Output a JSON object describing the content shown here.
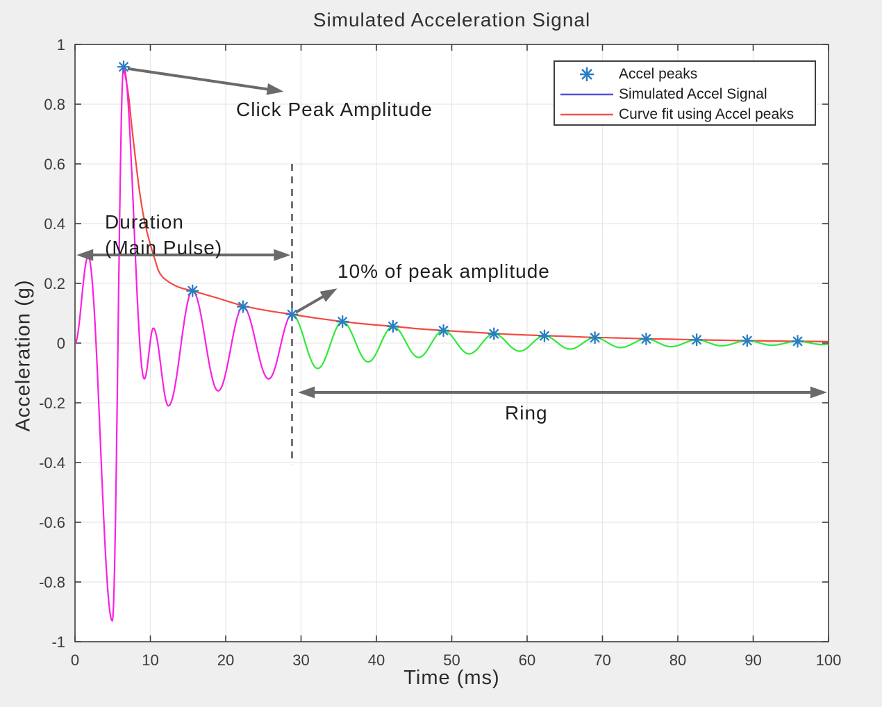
{
  "figure": {
    "title": "Simulated Acceleration Signal",
    "x_axis_label": "Time (ms)",
    "y_axis_label": "Acceleration (g)"
  },
  "legend": {
    "items": [
      {
        "label": "Accel peaks",
        "marker": "asterisk",
        "color": "#2b7dc0"
      },
      {
        "label": "Simulated Accel Signal",
        "marker": "line",
        "color": "#5552dd"
      },
      {
        "label": "Curve fit using Accel peaks",
        "marker": "line",
        "color": "#f5534b"
      }
    ]
  },
  "annotations": {
    "click_peak": "Click Peak Amplitude",
    "duration_line1": "Duration",
    "duration_line2": "(Main Pulse)",
    "ten_percent": "10% of peak amplitude",
    "ring": "Ring"
  },
  "chart_data": {
    "type": "line",
    "title": "Simulated Acceleration Signal",
    "xlabel": "Time (ms)",
    "ylabel": "Acceleration (g)",
    "xlim": [
      0,
      100
    ],
    "ylim": [
      -1,
      1
    ],
    "x_ticks": [
      0,
      10,
      20,
      30,
      40,
      50,
      60,
      70,
      80,
      90,
      100
    ],
    "y_ticks": [
      -1,
      -0.8,
      -0.6,
      -0.4,
      -0.2,
      0,
      0.2,
      0.4,
      0.6,
      0.8,
      1
    ],
    "grid": true,
    "legend_position": "top-right",
    "colors": {
      "main_pulse": "#fb1fe4",
      "ring": "#2fe93a",
      "curve_fit": "#f34a40",
      "peaks": "#2b7dc0",
      "dashed_guide": "#5c5c5c",
      "arrows": "#6a6a6a"
    },
    "series": [
      {
        "name": "Simulated Accel Signal (main pulse segment)",
        "style": "extrema-wave",
        "color_key": "main_pulse",
        "extrema": [
          [
            0,
            0
          ],
          [
            1.75,
            0.29
          ],
          [
            4.95,
            -0.93
          ],
          [
            6.45,
            0.925
          ],
          [
            9.2,
            -0.12
          ],
          [
            10.4,
            0.05
          ],
          [
            12.4,
            -0.21
          ],
          [
            15.6,
            0.175
          ],
          [
            19,
            -0.16
          ],
          [
            22.3,
            0.122
          ],
          [
            25.7,
            -0.12
          ],
          [
            28.8,
            0.096
          ]
        ]
      },
      {
        "name": "Simulated Accel Signal (ring segment)",
        "style": "extrema-wave",
        "color_key": "ring",
        "extrema": [
          [
            28.8,
            0.096
          ],
          [
            32.2,
            -0.085
          ],
          [
            35.5,
            0.072
          ],
          [
            38.9,
            -0.063
          ],
          [
            42.2,
            0.056
          ],
          [
            45.6,
            -0.048
          ],
          [
            48.9,
            0.042
          ],
          [
            52.3,
            -0.036
          ],
          [
            55.6,
            0.031
          ],
          [
            59,
            -0.027
          ],
          [
            62.3,
            0.024
          ],
          [
            65.7,
            -0.02
          ],
          [
            69,
            0.018
          ],
          [
            72.4,
            -0.015
          ],
          [
            75.8,
            0.014
          ],
          [
            79.1,
            -0.012
          ],
          [
            82.5,
            0.011
          ],
          [
            85.8,
            -0.009
          ],
          [
            89.2,
            0.008
          ],
          [
            92.5,
            -0.007
          ],
          [
            95.9,
            0.006
          ],
          [
            99.2,
            -0.005
          ],
          [
            100,
            -0.004
          ]
        ]
      },
      {
        "name": "Curve fit using Accel peaks",
        "style": "smooth-line",
        "color_key": "curve_fit",
        "points": [
          [
            6.45,
            0.925
          ],
          [
            7.1,
            0.83
          ],
          [
            7.6,
            0.71
          ],
          [
            8.5,
            0.52
          ],
          [
            9.3,
            0.4
          ],
          [
            10.6,
            0.28
          ],
          [
            11.5,
            0.225
          ],
          [
            13.5,
            0.19
          ],
          [
            15.6,
            0.175
          ],
          [
            19,
            0.15
          ],
          [
            22.3,
            0.125
          ],
          [
            25.7,
            0.108
          ],
          [
            28.8,
            0.096
          ],
          [
            32.2,
            0.083
          ],
          [
            35.5,
            0.072
          ],
          [
            38.9,
            0.063
          ],
          [
            42.2,
            0.056
          ],
          [
            45.6,
            0.048
          ],
          [
            48.9,
            0.042
          ],
          [
            52.3,
            0.037
          ],
          [
            55.6,
            0.032
          ],
          [
            59,
            0.028
          ],
          [
            62.3,
            0.025
          ],
          [
            65.7,
            0.022
          ],
          [
            69,
            0.019
          ],
          [
            72.4,
            0.017
          ],
          [
            75.8,
            0.0145
          ],
          [
            79.1,
            0.013
          ],
          [
            82.5,
            0.011
          ],
          [
            85.8,
            0.0095
          ],
          [
            89.2,
            0.008
          ],
          [
            92.5,
            0.007
          ],
          [
            95.9,
            0.006
          ],
          [
            100,
            0.005
          ]
        ]
      },
      {
        "name": "Accel peaks",
        "style": "asterisk-markers",
        "color_key": "peaks",
        "points": [
          [
            6.45,
            0.925
          ],
          [
            15.6,
            0.175
          ],
          [
            22.3,
            0.122
          ],
          [
            28.8,
            0.096
          ],
          [
            35.5,
            0.072
          ],
          [
            42.2,
            0.056
          ],
          [
            48.9,
            0.042
          ],
          [
            55.6,
            0.031
          ],
          [
            62.3,
            0.024
          ],
          [
            69,
            0.018
          ],
          [
            75.8,
            0.014
          ],
          [
            82.5,
            0.011
          ],
          [
            89.2,
            0.008
          ],
          [
            95.9,
            0.006
          ]
        ]
      }
    ],
    "guides": {
      "dashed_line": {
        "t": 28.8,
        "v_top": 0.6,
        "v_bottom": -0.405
      },
      "duration_span_ms": [
        0,
        28.8
      ],
      "ring_span_ms": [
        28.8,
        100
      ],
      "arrows": [
        {
          "name": "click-peak",
          "from_tv": [
            7.0,
            0.919
          ],
          "to_tv": [
            27.7,
            0.842
          ],
          "heads": "end"
        },
        {
          "name": "duration",
          "from_tv": [
            0.2,
            0.295
          ],
          "to_tv": [
            28.6,
            0.295
          ],
          "heads": "both"
        },
        {
          "name": "ten-percent",
          "from_tv": [
            29.3,
            0.103
          ],
          "to_tv": [
            34.8,
            0.183
          ],
          "heads": "end"
        },
        {
          "name": "ring",
          "from_tv": [
            29.6,
            -0.165
          ],
          "to_tv": [
            99.8,
            -0.165
          ],
          "heads": "both"
        }
      ]
    }
  }
}
